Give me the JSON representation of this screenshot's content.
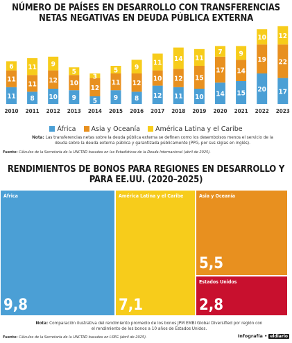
{
  "colors": {
    "africa": "#4b9fd5",
    "asia": "#e8901f",
    "latam": "#f7cc1b",
    "us": "#c8102e",
    "text": "#1b1b1b"
  },
  "chart_data": [
    {
      "type": "bar",
      "stacked": true,
      "title": "NÚMERO DE PAÍSES EN DESARROLLO CON TRANSFERENCIAS NETAS NEGATIVAS EN DEUDA PÚBLICA EXTERNA",
      "categories": [
        "2010",
        "2011",
        "2012",
        "2013",
        "2014",
        "2015",
        "2016",
        "2017",
        "2018",
        "2019",
        "2020",
        "2021",
        "2022",
        "2023"
      ],
      "series": [
        {
          "name": "África",
          "color": "#4b9fd5",
          "values": [
            11,
            8,
            10,
            9,
            5,
            9,
            8,
            12,
            11,
            10,
            14,
            15,
            20,
            17
          ]
        },
        {
          "name": "Asia y Oceanía",
          "color": "#e8901f",
          "values": [
            11,
            11,
            12,
            10,
            12,
            11,
            12,
            10,
            12,
            15,
            17,
            14,
            19,
            22
          ]
        },
        {
          "name": "América Latina y el Caribe",
          "color": "#f7cc1b",
          "values": [
            6,
            11,
            9,
            5,
            3,
            5,
            9,
            11,
            14,
            11,
            7,
            9,
            10,
            12
          ]
        }
      ],
      "legend_position": "bottom",
      "xlabel": "",
      "ylabel": "",
      "note_label": "Nota:",
      "note": "Las transferencias netas sobre la deuda pública externa se definen como los desembolsos menos el servicio de la deuda sobre la deuda externa pública y garantizada públicamente (PPG, por sus siglas en inglés).",
      "source_label": "Fuente:",
      "source": "Cálculos de la Secretaría de la UNCTAD basados en las Estadísticas de la Deuda Internacional (abril de 2025)."
    },
    {
      "type": "treemap",
      "title": "RENDIMIENTOS DE BONOS PARA REGIONES EN DESARROLLO Y PARA EE.UU. (2020–2025)",
      "items": [
        {
          "name": "África",
          "value": 9.8,
          "label": "9,8",
          "color": "#4b9fd5"
        },
        {
          "name": "América Latina y el Caribe",
          "value": 7.1,
          "label": "7,1",
          "color": "#f7cc1b"
        },
        {
          "name": "Asia y Oceanía",
          "value": 5.5,
          "label": "5,5",
          "color": "#e8901f"
        },
        {
          "name": "Estados Unidos",
          "value": 2.8,
          "label": "2,8",
          "color": "#c8102e"
        }
      ],
      "note_label": "Nota:",
      "note": "Comparación ilustrativa del rendimiento promedio de los bonos JPM EMBI Global Diversified por región con el rendimiento de los bonos a 10 años de Estados Unidos.",
      "source_label": "Fuente:",
      "source": "Cálculos de la Secretaría de la UNCTAD basados en LSEG (abril de 2025)."
    }
  ],
  "credit": {
    "label": "Infografía •",
    "logo": "eldiario"
  }
}
